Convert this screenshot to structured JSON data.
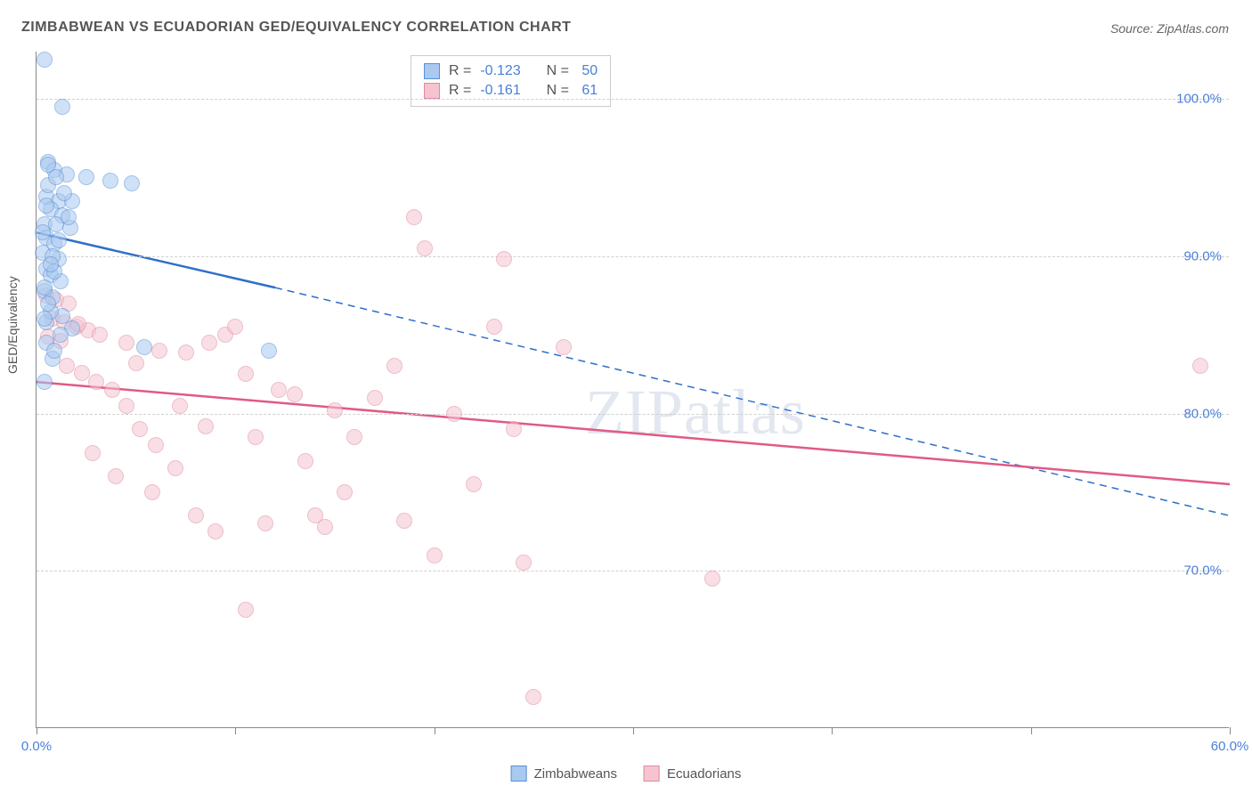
{
  "title": "ZIMBABWEAN VS ECUADORIAN GED/EQUIVALENCY CORRELATION CHART",
  "source": "Source: ZipAtlas.com",
  "y_axis_label": "GED/Equivalency",
  "watermark": "ZIPatlas",
  "chart": {
    "type": "scatter",
    "background_color": "#ffffff",
    "grid_color": "#d0d0d0",
    "axis_color": "#888888",
    "tick_label_color": "#4a7fd8",
    "title_color": "#555555",
    "xlim": [
      0,
      60
    ],
    "ylim": [
      60,
      103
    ],
    "x_ticks": [
      0,
      10,
      20,
      30,
      40,
      50,
      60
    ],
    "x_tick_labels": [
      "0.0%",
      "",
      "",
      "",
      "",
      "",
      "60.0%"
    ],
    "y_ticks": [
      70,
      80,
      90,
      100
    ],
    "y_tick_labels": [
      "70.0%",
      "80.0%",
      "90.0%",
      "100.0%"
    ],
    "marker_radius": 9,
    "marker_opacity": 0.55,
    "marker_stroke_width": 1,
    "trend_line_width": 2.5
  },
  "series": {
    "zimbabweans": {
      "label": "Zimbabweans",
      "fill_color": "#a9c9f0",
      "stroke_color": "#5a8fd6",
      "line_color": "#2f6fc9",
      "R": "-0.123",
      "N": "50",
      "trend": {
        "x1": 0,
        "y1": 91.5,
        "x2_solid": 12,
        "y2_solid": 88.0,
        "x2_dash": 60,
        "y2_dash": 73.5
      },
      "points": [
        [
          0.4,
          102.5
        ],
        [
          1.3,
          99.5
        ],
        [
          0.6,
          96.0
        ],
        [
          0.9,
          95.5
        ],
        [
          1.5,
          95.2
        ],
        [
          2.5,
          95.0
        ],
        [
          3.7,
          94.8
        ],
        [
          4.8,
          94.6
        ],
        [
          0.5,
          93.8
        ],
        [
          1.1,
          93.5
        ],
        [
          1.8,
          93.5
        ],
        [
          0.7,
          93.0
        ],
        [
          1.3,
          92.6
        ],
        [
          0.4,
          92.0
        ],
        [
          1.0,
          92.0
        ],
        [
          1.7,
          91.8
        ],
        [
          0.5,
          91.2
        ],
        [
          0.9,
          90.8
        ],
        [
          0.3,
          90.2
        ],
        [
          1.1,
          89.8
        ],
        [
          0.5,
          89.2
        ],
        [
          0.7,
          88.8
        ],
        [
          1.2,
          88.4
        ],
        [
          0.4,
          87.8
        ],
        [
          0.8,
          87.4
        ],
        [
          1.3,
          86.2
        ],
        [
          0.5,
          85.8
        ],
        [
          1.8,
          85.4
        ],
        [
          0.4,
          82.0
        ],
        [
          5.4,
          84.2
        ],
        [
          11.7,
          84.0
        ],
        [
          0.6,
          94.5
        ],
        [
          1.4,
          94.0
        ],
        [
          0.3,
          91.5
        ],
        [
          0.8,
          90.0
        ],
        [
          0.4,
          88.0
        ],
        [
          0.7,
          86.5
        ],
        [
          0.5,
          84.5
        ],
        [
          1.0,
          95.0
        ],
        [
          1.6,
          92.5
        ],
        [
          0.9,
          89.0
        ],
        [
          0.6,
          87.0
        ],
        [
          1.2,
          85.0
        ],
        [
          0.8,
          83.5
        ],
        [
          0.5,
          93.2
        ],
        [
          1.1,
          91.0
        ],
        [
          0.7,
          89.5
        ],
        [
          0.4,
          86.0
        ],
        [
          0.9,
          84.0
        ],
        [
          0.6,
          95.8
        ]
      ]
    },
    "ecuadorians": {
      "label": "Ecuadorians",
      "fill_color": "#f5c4d0",
      "stroke_color": "#e08aa0",
      "line_color": "#e05a85",
      "R": "-0.161",
      "N": "61",
      "trend": {
        "x1": 0,
        "y1": 82.0,
        "x2_solid": 60,
        "y2_solid": 75.5,
        "x2_dash": 60,
        "y2_dash": 75.5
      },
      "points": [
        [
          0.5,
          87.5
        ],
        [
          1.0,
          87.2
        ],
        [
          1.6,
          87.0
        ],
        [
          0.8,
          86.0
        ],
        [
          1.4,
          85.8
        ],
        [
          2.0,
          85.5
        ],
        [
          2.6,
          85.3
        ],
        [
          0.6,
          84.9
        ],
        [
          1.2,
          84.6
        ],
        [
          2.1,
          85.7
        ],
        [
          3.2,
          85.0
        ],
        [
          4.5,
          84.5
        ],
        [
          5.0,
          83.2
        ],
        [
          6.2,
          84.0
        ],
        [
          7.5,
          83.9
        ],
        [
          8.7,
          84.5
        ],
        [
          9.5,
          85.0
        ],
        [
          10.0,
          85.5
        ],
        [
          10.5,
          82.5
        ],
        [
          12.2,
          81.5
        ],
        [
          13.0,
          81.2
        ],
        [
          14.0,
          73.5
        ],
        [
          14.5,
          72.8
        ],
        [
          15.0,
          80.2
        ],
        [
          16.0,
          78.5
        ],
        [
          17.0,
          81.0
        ],
        [
          18.0,
          83.0
        ],
        [
          19.0,
          92.5
        ],
        [
          19.5,
          90.5
        ],
        [
          21.0,
          80.0
        ],
        [
          22.0,
          75.5
        ],
        [
          23.0,
          85.5
        ],
        [
          24.0,
          79.0
        ],
        [
          24.5,
          70.5
        ],
        [
          25.0,
          62.0
        ],
        [
          26.5,
          84.2
        ],
        [
          34.0,
          69.5
        ],
        [
          58.5,
          83.0
        ],
        [
          1.5,
          83.0
        ],
        [
          2.3,
          82.6
        ],
        [
          3.0,
          82.0
        ],
        [
          3.8,
          81.5
        ],
        [
          4.5,
          80.5
        ],
        [
          5.2,
          79.0
        ],
        [
          6.0,
          78.0
        ],
        [
          7.0,
          76.5
        ],
        [
          8.0,
          73.5
        ],
        [
          9.0,
          72.5
        ],
        [
          10.5,
          67.5
        ],
        [
          2.8,
          77.5
        ],
        [
          4.0,
          76.0
        ],
        [
          5.8,
          75.0
        ],
        [
          7.2,
          80.5
        ],
        [
          8.5,
          79.2
        ],
        [
          11.0,
          78.5
        ],
        [
          13.5,
          77.0
        ],
        [
          15.5,
          75.0
        ],
        [
          18.5,
          73.2
        ],
        [
          20.0,
          71.0
        ],
        [
          11.5,
          73.0
        ],
        [
          23.5,
          89.8
        ]
      ]
    }
  },
  "stats_box": {
    "r_label": "R =",
    "n_label": "N ="
  },
  "legend": {
    "items": [
      "zimbabweans",
      "ecuadorians"
    ]
  }
}
